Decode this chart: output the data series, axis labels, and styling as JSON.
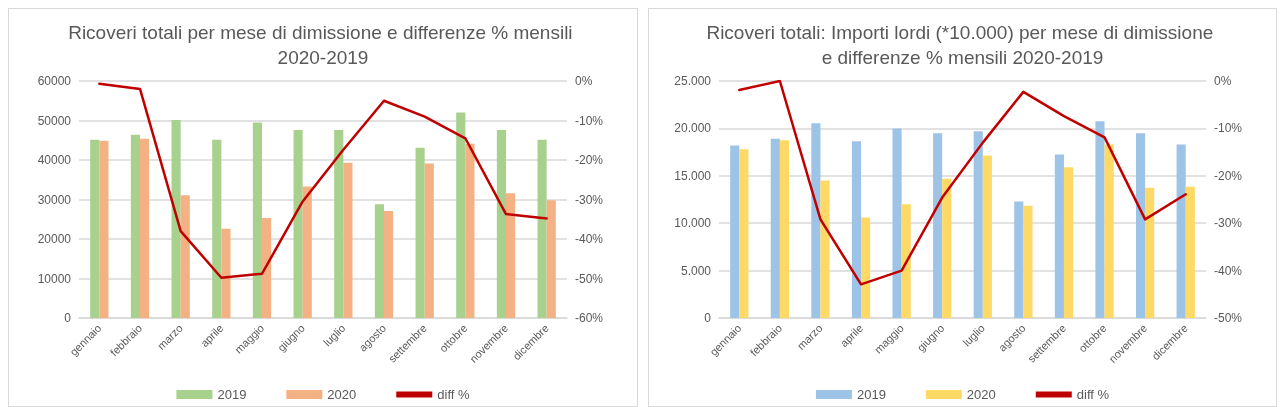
{
  "chart_data": [
    {
      "type": "bar",
      "title": "Ricoveri totali per mese di dimissione e differenze % mensili 2020-2019",
      "categories": [
        "gennaio",
        "febbraio",
        "marzo",
        "aprile",
        "maggio",
        "giugno",
        "luglio",
        "agosto",
        "settembre",
        "ottobre",
        "novembre",
        "dicembre"
      ],
      "series": [
        {
          "name": "2019",
          "color": "#a9d18e",
          "values": [
            45100,
            46400,
            50100,
            45100,
            49500,
            47600,
            47600,
            28800,
            43100,
            52000,
            47600,
            45100
          ]
        },
        {
          "name": "2020",
          "color": "#f4b183",
          "values": [
            44900,
            45400,
            31100,
            22600,
            25300,
            33300,
            39300,
            27100,
            39100,
            44100,
            31600,
            29800
          ]
        },
        {
          "name": "diff %",
          "type": "line",
          "axis": "y2",
          "color": "#c00000",
          "values": [
            -0.7,
            -2,
            -38,
            -49.8,
            -48.8,
            -30.5,
            -17.4,
            -5,
            -9,
            -14.5,
            -33.7,
            -34.8
          ]
        }
      ],
      "ylim": [
        0,
        60000
      ],
      "yticks": [
        0,
        10000,
        20000,
        30000,
        40000,
        50000,
        60000
      ],
      "y2lim": [
        -60,
        0
      ],
      "y2ticks": [
        {
          "value": -60,
          "label": "-60%"
        },
        {
          "value": -50,
          "label": "-50%"
        },
        {
          "value": -40,
          "label": "-40%"
        },
        {
          "value": -30,
          "label": "-30%"
        },
        {
          "value": -20,
          "label": "-20%"
        },
        {
          "value": -10,
          "label": "-10%"
        },
        {
          "value": 0,
          "label": "0%"
        }
      ],
      "grid": "y",
      "legend": "bottom",
      "marker": "none"
    },
    {
      "type": "bar",
      "title": "Ricoveri totali: Importi lordi (*10.000) per mese di dimissione e differenze % mensili 2020-2019",
      "categories": [
        "gennaio",
        "febbraio",
        "marzo",
        "aprile",
        "maggio",
        "giugno",
        "luglio",
        "agosto",
        "settembre",
        "ottobre",
        "novembre",
        "dicembre"
      ],
      "series": [
        {
          "name": "2019",
          "color": "#9dc3e6",
          "values": [
            18200,
            18900,
            20550,
            18650,
            20000,
            19500,
            19700,
            12300,
            17250,
            20750,
            19500,
            18300
          ]
        },
        {
          "name": "2020",
          "color": "#ffd966",
          "values": [
            17800,
            18750,
            14500,
            10600,
            12000,
            14700,
            17150,
            11850,
            15900,
            18300,
            13750,
            13850
          ]
        },
        {
          "name": "diff %",
          "type": "line",
          "axis": "y2",
          "color": "#c00000",
          "values": [
            -1.9,
            0,
            -29.2,
            -42.9,
            -40,
            -24.6,
            -13,
            -2.3,
            -7.4,
            -11.9,
            -29.2,
            -23.9
          ]
        }
      ],
      "ylim": [
        0,
        25000
      ],
      "yticks": [
        0,
        {
          "value": 5000,
          "label": "5.000"
        },
        {
          "value": 10000,
          "label": "10.000"
        },
        {
          "value": 15000,
          "label": "15.000"
        },
        {
          "value": 20000,
          "label": "20.000"
        },
        {
          "value": 25000,
          "label": "25.000"
        }
      ],
      "y2lim": [
        -50,
        0
      ],
      "y2ticks": [
        {
          "value": -50,
          "label": "-50%"
        },
        {
          "value": -40,
          "label": "-40%"
        },
        {
          "value": -30,
          "label": "-30%"
        },
        {
          "value": -20,
          "label": "-20%"
        },
        {
          "value": -10,
          "label": "-10%"
        },
        {
          "value": 0,
          "label": "0%"
        }
      ],
      "grid": "y",
      "legend": "bottom",
      "marker": "none"
    }
  ]
}
